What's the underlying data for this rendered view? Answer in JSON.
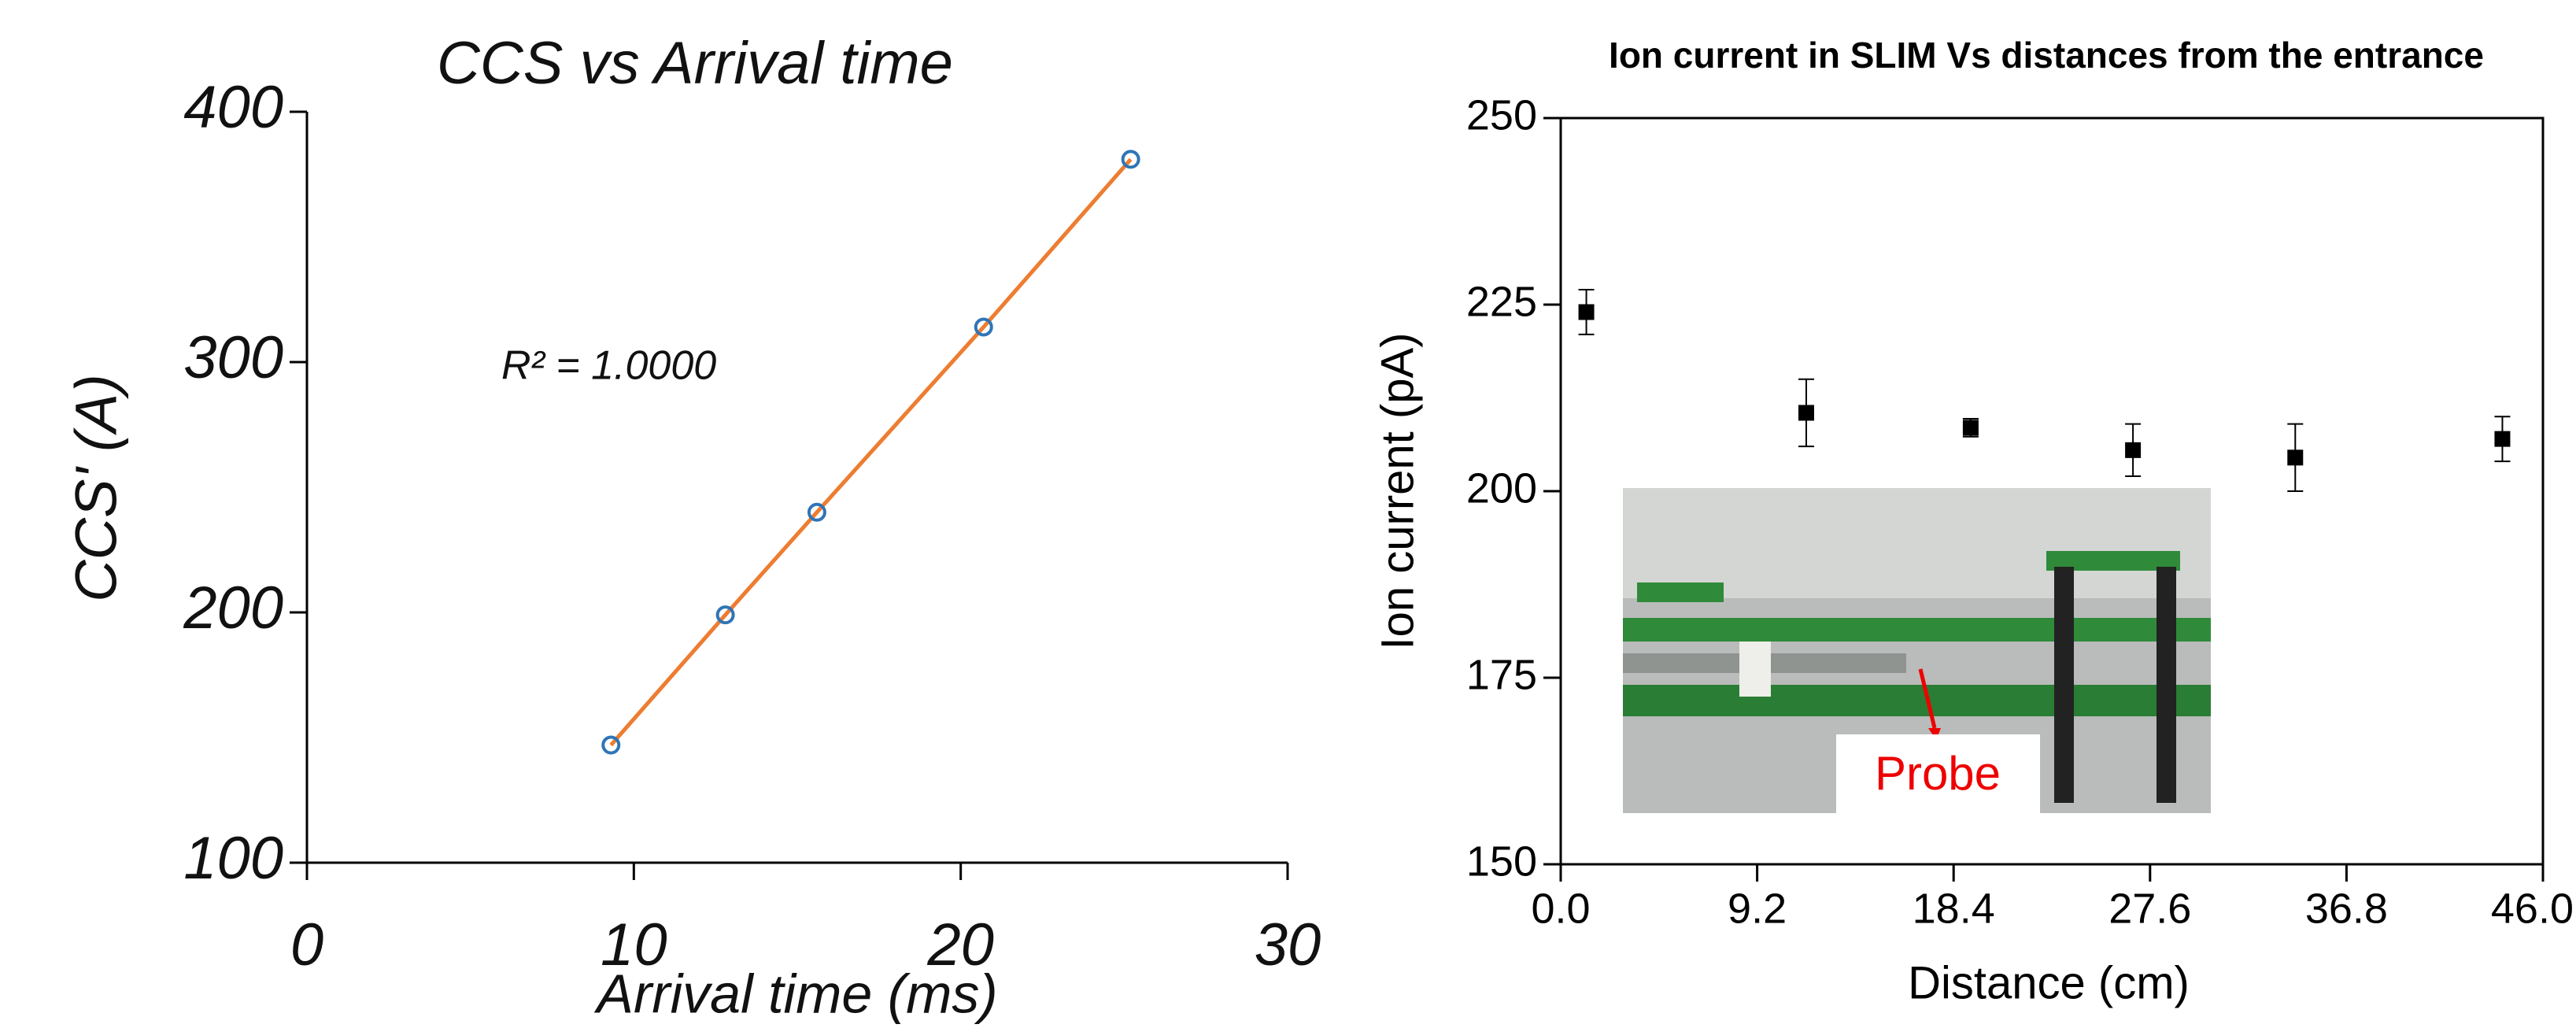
{
  "chart_data": [
    {
      "type": "line",
      "title": "CCS vs Arrival time",
      "x_label": "Arrival time (ms)",
      "y_label": "CCS' (A)",
      "annotation": "R² = 1.0000",
      "series": [
        {
          "marker_color": "#2e75b6",
          "color": "#ed7d31",
          "x": [
            9.3,
            12.8,
            15.6,
            20.7,
            25.2
          ],
          "values": [
            147,
            199,
            240,
            314,
            381
          ]
        }
      ],
      "xlim": [
        0,
        30
      ],
      "xticks": [
        0,
        10,
        20,
        30
      ],
      "ylim": [
        100,
        400
      ],
      "yticks": [
        100,
        200,
        300,
        400
      ]
    },
    {
      "type": "scatter",
      "title": "Ion current in SLIM Vs distances from the entrance",
      "x_label": "Distance (cm)",
      "y_label": "Ion current (pA)",
      "inset_label": "Probe",
      "series": [
        {
          "color": "#000000",
          "x": [
            1.2,
            11.5,
            19.2,
            26.8,
            34.4,
            44.1
          ],
          "values": [
            224,
            210.5,
            208.5,
            205.5,
            204.5,
            207
          ],
          "errors": [
            3,
            4.5,
            1.2,
            3.5,
            4.5,
            3
          ]
        }
      ],
      "xlim": [
        0,
        46
      ],
      "xticks": [
        {
          "value": 0,
          "label": "0.0"
        },
        9.2,
        18.4,
        27.6,
        36.8,
        {
          "value": 46,
          "label": "46.0"
        }
      ],
      "ylim": [
        150,
        250
      ],
      "yticks": [
        150,
        175,
        200,
        225,
        250
      ]
    }
  ]
}
